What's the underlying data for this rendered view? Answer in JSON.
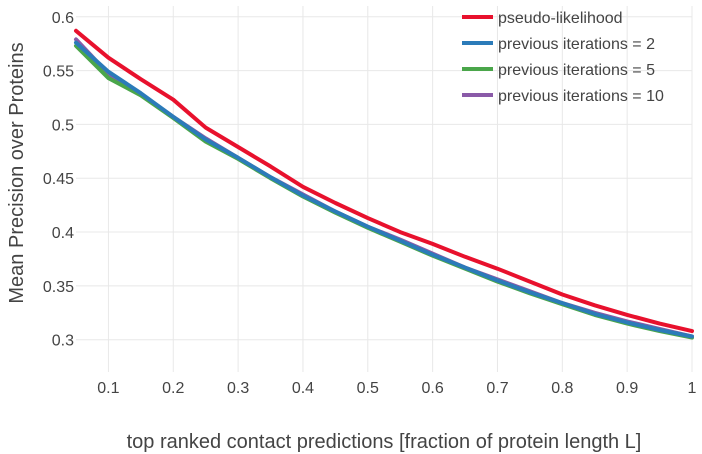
{
  "chart_data": {
    "type": "line",
    "xlabel": "top ranked contact predictions [fraction of protein length L]",
    "ylabel": "Mean Precision over Proteins",
    "xlim": [
      0.05,
      1.0
    ],
    "ylim": [
      0.27,
      0.61
    ],
    "grid": true,
    "legend_position": "top-right",
    "x_ticks": [
      0.1,
      0.2,
      0.3,
      0.4,
      0.5,
      0.6,
      0.7,
      0.8,
      0.9,
      1.0
    ],
    "x_tick_labels": [
      "0.1",
      "0.2",
      "0.3",
      "0.4",
      "0.5",
      "0.6",
      "0.7",
      "0.8",
      "0.9",
      "1"
    ],
    "y_ticks": [
      0.3,
      0.35,
      0.4,
      0.45,
      0.5,
      0.55,
      0.6
    ],
    "y_tick_labels": [
      "0.3",
      "0.35",
      "0.4",
      "0.45",
      "0.5",
      "0.55",
      "0.6"
    ],
    "x": [
      0.05,
      0.1,
      0.15,
      0.2,
      0.25,
      0.3,
      0.35,
      0.4,
      0.45,
      0.5,
      0.55,
      0.6,
      0.65,
      0.7,
      0.75,
      0.8,
      0.85,
      0.9,
      0.95,
      1.0
    ],
    "series": [
      {
        "name": "previous iterations = 10",
        "color": "#8a5aa8",
        "values": [
          0.579,
          0.547,
          0.528,
          0.507,
          0.487,
          0.469,
          0.451,
          0.435,
          0.419,
          0.405,
          0.393,
          0.38,
          0.367,
          0.356,
          0.345,
          0.334,
          0.325,
          0.317,
          0.31,
          0.303
        ]
      },
      {
        "name": "previous iterations = 5",
        "color": "#4aa64a",
        "values": [
          0.573,
          0.543,
          0.527,
          0.506,
          0.484,
          0.468,
          0.45,
          0.433,
          0.418,
          0.404,
          0.391,
          0.378,
          0.366,
          0.354,
          0.343,
          0.333,
          0.323,
          0.315,
          0.308,
          0.302
        ]
      },
      {
        "name": "previous iterations = 2",
        "color": "#2b7bb9",
        "values": [
          0.576,
          0.549,
          0.529,
          0.507,
          0.486,
          0.469,
          0.451,
          0.434,
          0.419,
          0.405,
          0.392,
          0.379,
          0.367,
          0.355,
          0.344,
          0.334,
          0.324,
          0.316,
          0.309,
          0.303
        ]
      },
      {
        "name": "pseudo-likelihood",
        "color": "#e8112d",
        "values": [
          0.587,
          0.562,
          0.542,
          0.523,
          0.497,
          0.479,
          0.461,
          0.442,
          0.427,
          0.413,
          0.4,
          0.389,
          0.377,
          0.366,
          0.354,
          0.342,
          0.332,
          0.323,
          0.315,
          0.308
        ]
      }
    ],
    "legend_order": [
      "pseudo-likelihood",
      "previous iterations = 2",
      "previous iterations = 5",
      "previous iterations = 10"
    ]
  }
}
